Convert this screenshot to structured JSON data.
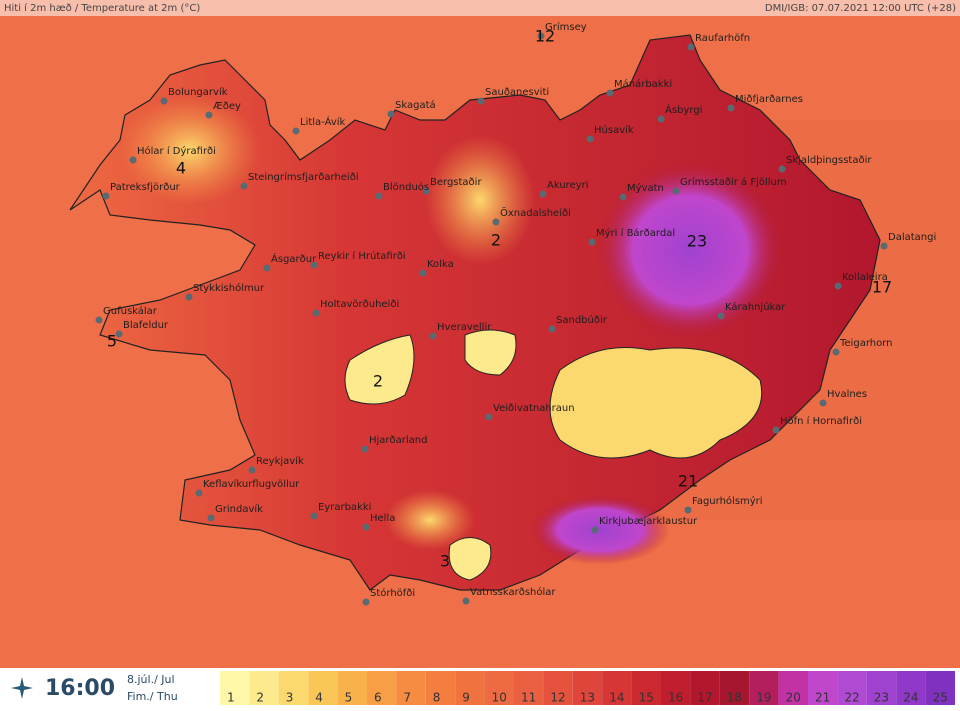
{
  "header": {
    "title": "Hiti í 2m hæð / Temperature at 2m (°C)",
    "source": "DMI/IGB: 07.07.2021 12:00 UTC (+28)"
  },
  "places": [
    "Grímsey",
    "Raufarhöfn",
    "Bolungarvík",
    "Æðey",
    "Mánárbakki",
    "Ásbyrgi",
    "Miðfjarðarnes",
    "Skagatá",
    "Sauðanesviti",
    "Litla-Ávík",
    "Húsavík",
    "Hólar í Dýrafirði",
    "Skjaldþingsstaðir",
    "Steingrímsfjarðarheiði",
    "Bergstaðir",
    "Akureyri",
    "Grímsstaðir á Fjöllum",
    "Patreksfjörður",
    "Blönduós",
    "Mývatn",
    "Öxnadalsheiði",
    "Mýri í Bárðardal",
    "Dalatangi",
    "Ásgarður",
    "Reykir í Hrútafirði",
    "Kolka",
    "Kollaleira",
    "Stykkishólmur",
    "Holtavörðuheiði",
    "Kárahnjúkar",
    "Gufuskálar",
    "Sandbúðir",
    "Hveravellir",
    "Blafeldur",
    "Teigarhorn",
    "Hvalnes",
    "Veiðivatnahraun",
    "Höfn í Hornafirði",
    "Hjarðarland",
    "Reykjavík",
    "Keflavíkurflugvöllur",
    "Fagurhólsmýri",
    "Eyrarbakki",
    "Grindavík",
    "Hella",
    "Kirkjubæjarklaustur",
    "Stórhöfði",
    "Vatnsskarðshólar"
  ],
  "map_values": [
    12,
    4,
    2,
    23,
    17,
    5,
    2,
    21,
    3
  ],
  "footer": {
    "time": "16:00",
    "date": "8.júl./ Jul",
    "weekday": "Fim./ Thu"
  },
  "scale": {
    "labels": [
      1,
      2,
      3,
      4,
      5,
      6,
      7,
      8,
      9,
      10,
      11,
      12,
      13,
      14,
      15,
      16,
      17,
      18,
      19,
      20,
      21,
      22,
      23,
      24,
      25
    ],
    "colors": [
      "#fff7a8",
      "#fdea8c",
      "#fcd96e",
      "#fbc658",
      "#f9b24b",
      "#f89e45",
      "#f68c41",
      "#f37e3f",
      "#f0733f",
      "#ee6a42",
      "#ea6040",
      "#e5533e",
      "#df453a",
      "#d63635",
      "#cc2830",
      "#c01d2e",
      "#b2172e",
      "#a6162f",
      "#b21f5c",
      "#c232a4",
      "#c046cc",
      "#b04ad2",
      "#a042d0",
      "#9039c8",
      "#8031c0"
    ]
  }
}
